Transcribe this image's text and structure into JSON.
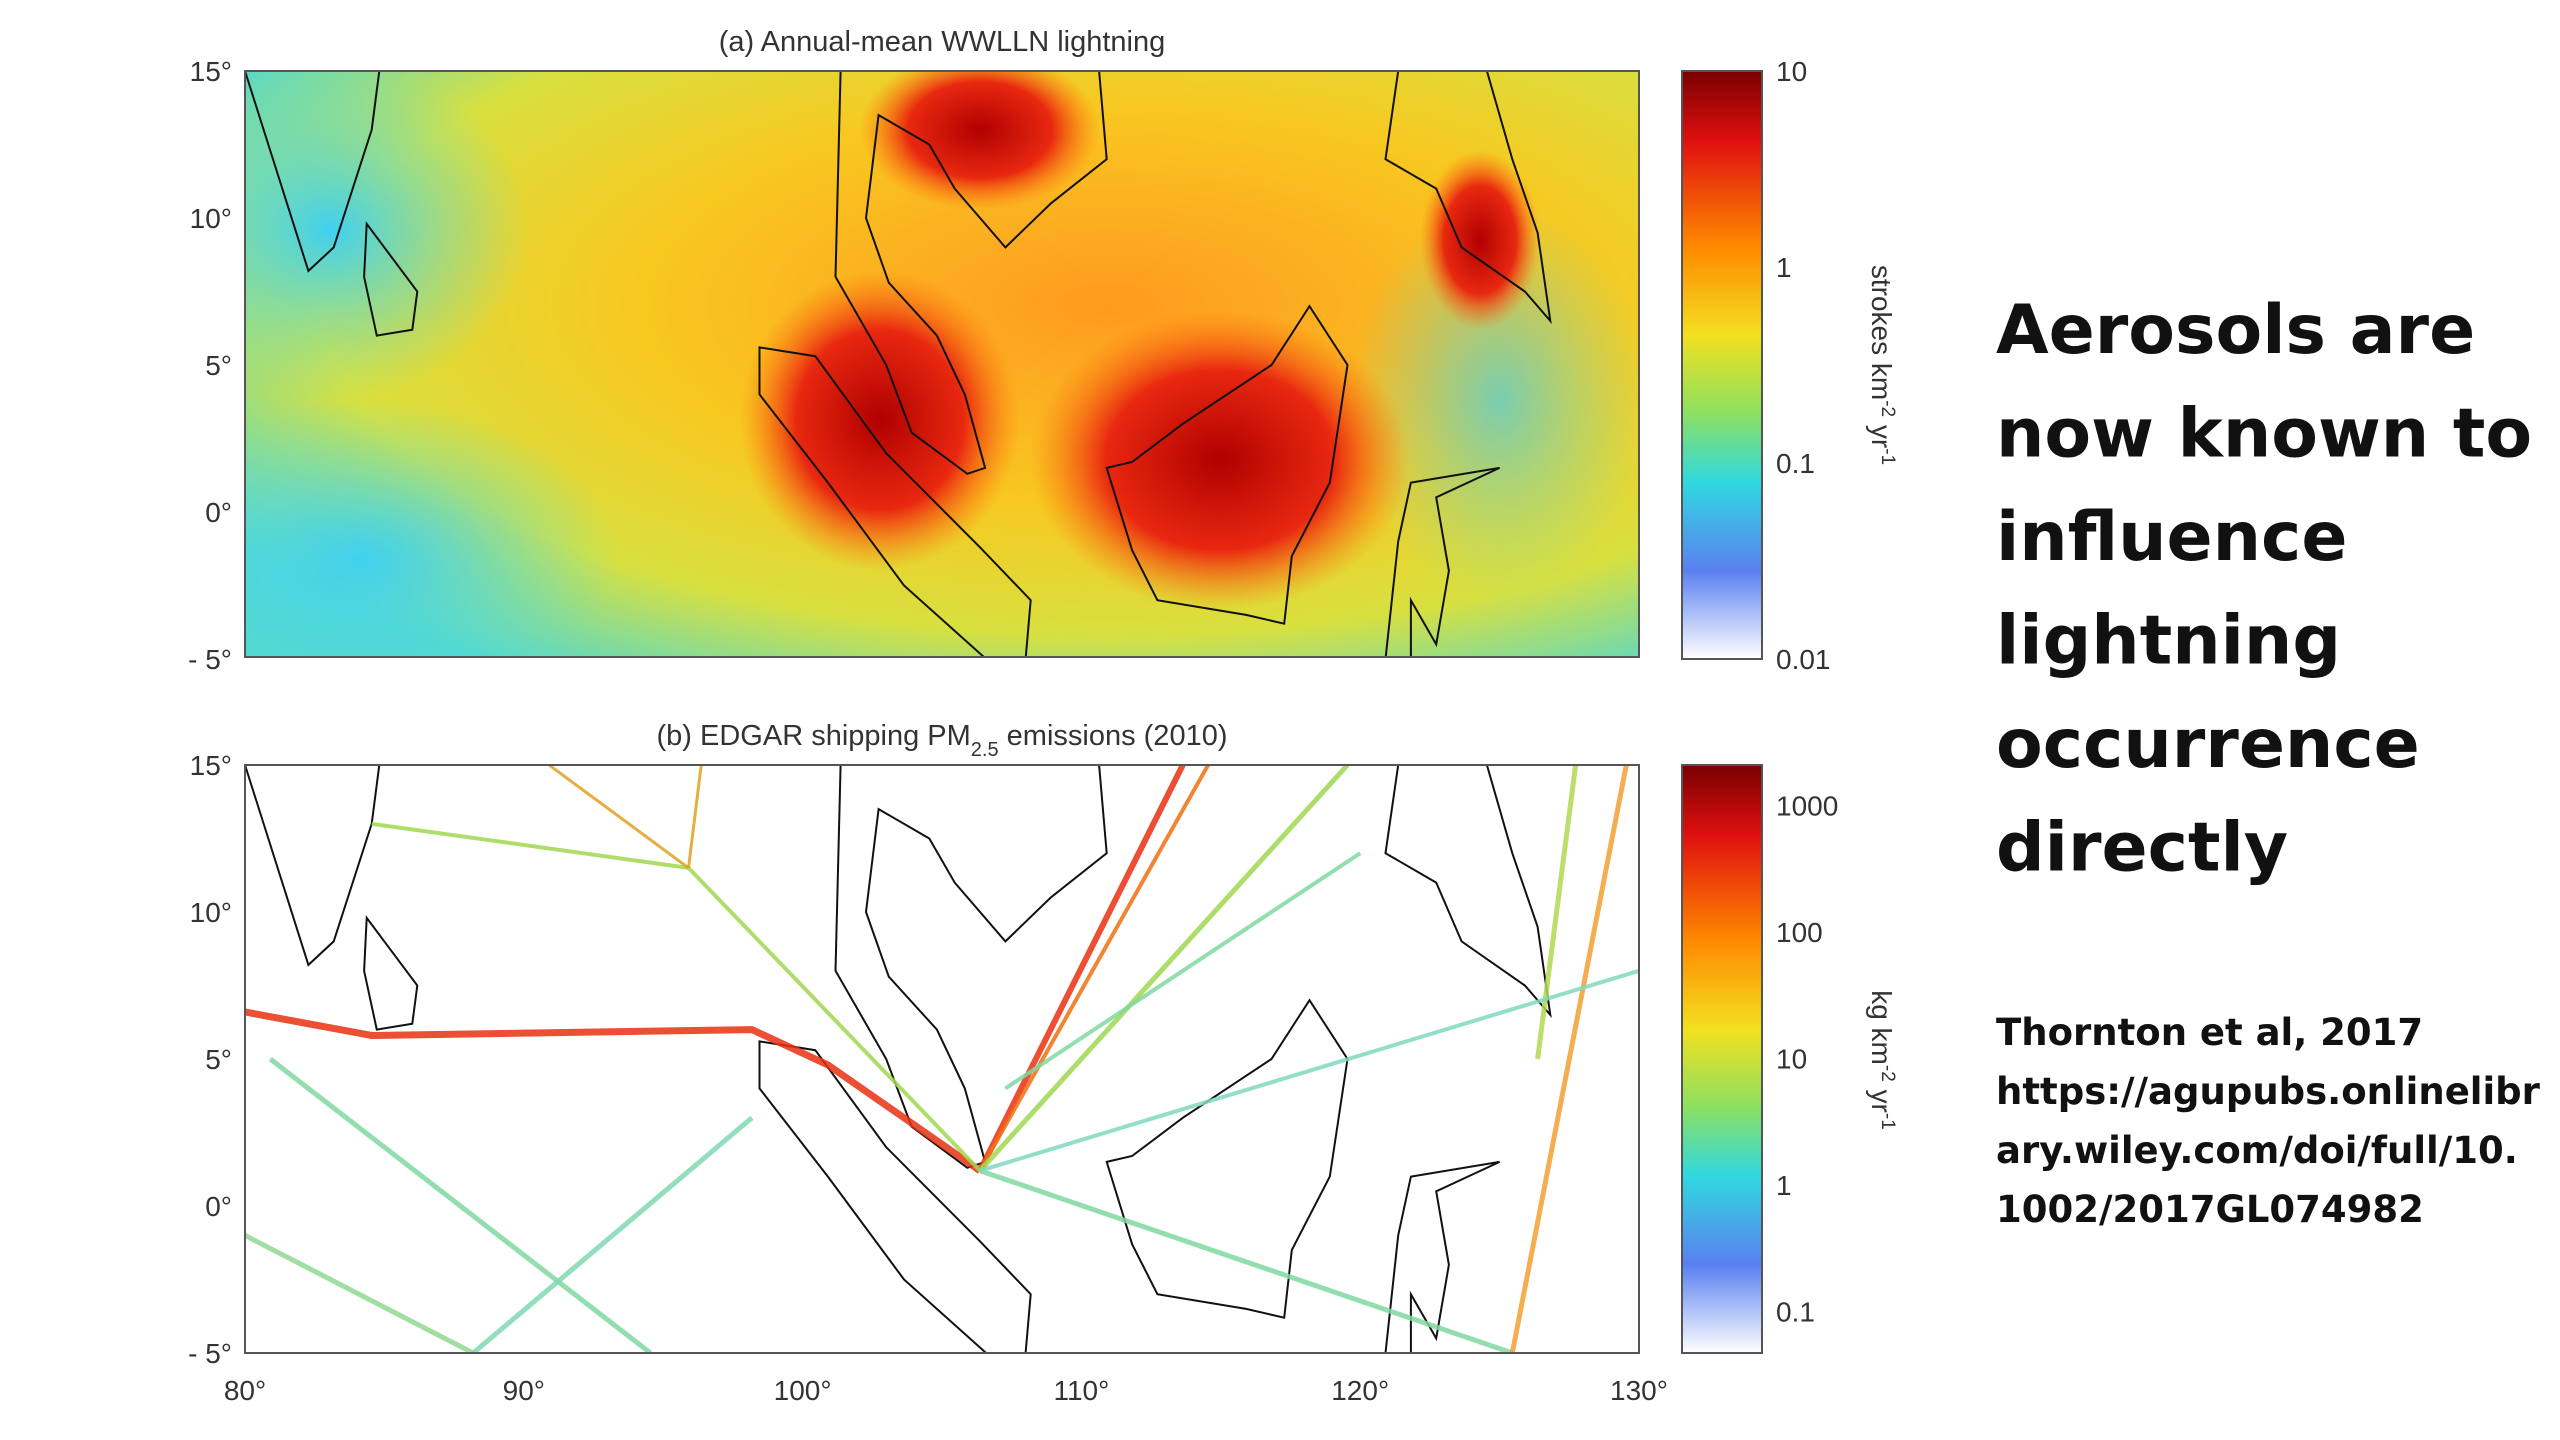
{
  "panels": [
    {
      "title": [
        "(a) Annual-mean WWLLN lightning"
      ],
      "y_ticks": [
        "15°",
        "10°",
        "5°",
        "0°",
        "- 5°"
      ],
      "colorbar_ticks": [
        "10",
        "1",
        "0.1",
        "0.01"
      ],
      "colorbar_label": [
        "strokes km",
        "-2",
        " yr",
        "-1"
      ]
    },
    {
      "title": [
        "(b) EDGAR shipping PM",
        "2.5",
        " emissions (2010)"
      ],
      "y_ticks": [
        "15°",
        "10°",
        "5°",
        "0°",
        "- 5°"
      ],
      "colorbar_ticks": [
        "1000",
        "100",
        "10",
        "1",
        "0.1"
      ],
      "colorbar_label": [
        "kg km",
        "-2",
        " yr",
        "-1"
      ]
    }
  ],
  "x_ticks": [
    "80°",
    "90°",
    "100°",
    "110°",
    "120°",
    "130°"
  ],
  "heading": [
    "Aerosols are",
    "now known to",
    "influence",
    "lightning",
    "occurrence",
    "directly"
  ],
  "citation": [
    "Thornton et al, 2017",
    "https://agupubs.onlinelibr",
    "ary.wiley.com/doi/full/10.",
    "1002/2017GL074982"
  ]
}
